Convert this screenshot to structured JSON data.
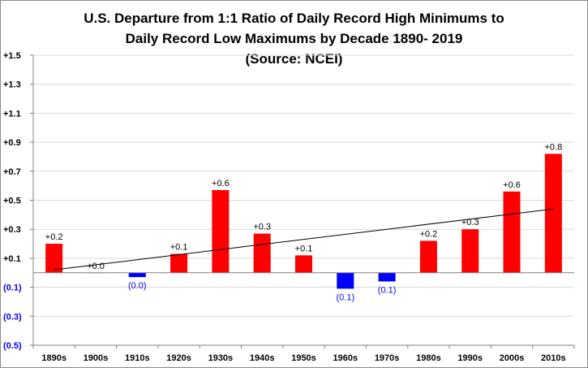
{
  "title_lines": [
    "U.S. Departure from 1:1 Ratio of Daily Record High Minimums to",
    "Daily Record Low Maximums by Decade 1890- 2019",
    "(Source: NCEI)"
  ],
  "colors": {
    "positive": "#ff0000",
    "negative": "#0000ff",
    "negative_text": "#0000ff",
    "trendline": "#000000",
    "axis": "#808080"
  },
  "chart_data": {
    "type": "bar",
    "title": "U.S. Departure from 1:1 Ratio of Daily Record High Minimums to Daily Record Low Maximums by Decade 1890- 2019 (Source: NCEI)",
    "categories": [
      "1890s",
      "1900s",
      "1910s",
      "1920s",
      "1930s",
      "1940s",
      "1950s",
      "1960s",
      "1970s",
      "1980s",
      "1990s",
      "2000s",
      "2010s"
    ],
    "values": [
      0.2,
      0.0,
      -0.03,
      0.13,
      0.57,
      0.27,
      0.12,
      -0.11,
      -0.06,
      0.22,
      0.3,
      0.56,
      0.82
    ],
    "data_labels": [
      "+0.2",
      "+0.0",
      "(0.0)",
      "+0.1",
      "+0.6",
      "+0.3",
      "+0.1",
      "(0.1)",
      "(0.1)",
      "+0.2",
      "+0.3",
      "+0.6",
      "+0.8"
    ],
    "ylim": [
      -0.5,
      1.5
    ],
    "y_ticks": [
      -0.5,
      -0.3,
      -0.1,
      0.1,
      0.3,
      0.5,
      0.7,
      0.9,
      1.1,
      1.3,
      1.5
    ],
    "y_tick_labels": [
      "(0.5)",
      "(0.3)",
      "(0.1)",
      "+0.1",
      "+0.3",
      "+0.5",
      "+0.7",
      "+0.9",
      "+1.1",
      "+1.3",
      "+1.5"
    ],
    "trendline": {
      "type": "linear",
      "start_value": 0.02,
      "end_value": 0.44
    },
    "grid": true,
    "legend": "none"
  }
}
